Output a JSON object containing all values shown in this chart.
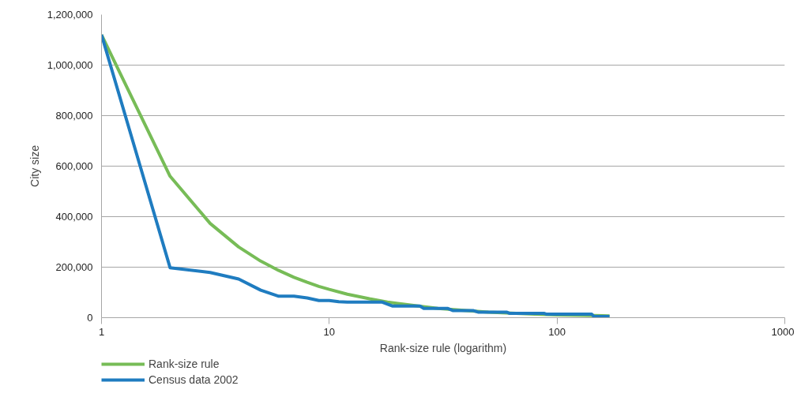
{
  "chart_data": {
    "type": "line",
    "xlabel": "Rank-size rule (logarithm)",
    "ylabel": "City size",
    "log": "x",
    "grid": "y",
    "legend": "bottom left",
    "line_style": "solid",
    "marker": "none",
    "xlim": [
      1,
      1000
    ],
    "xticks": [
      1,
      10,
      100,
      1000
    ],
    "ylim": [
      0,
      1200000
    ],
    "yticks": [
      {
        "value": 0,
        "label": "0"
      },
      {
        "value": 200000,
        "label": "200,000"
      },
      {
        "value": 400000,
        "label": "400,000"
      },
      {
        "value": 600000,
        "label": "600,000"
      },
      {
        "value": 800000,
        "label": "800,000"
      },
      {
        "value": 1000000,
        "label": "1,000,000"
      },
      {
        "value": 1200000,
        "label": "1,200,000"
      }
    ],
    "series": [
      {
        "name": "Rank-size rule",
        "color": "#77bc57",
        "x": [
          1,
          2,
          3,
          4,
          5,
          6,
          7,
          8,
          9,
          10,
          12,
          15,
          18,
          20,
          25,
          30,
          40,
          50,
          60,
          80,
          100,
          130,
          170
        ],
        "values": [
          1120000,
          560000,
          373000,
          280000,
          224000,
          187000,
          160000,
          140000,
          124000,
          112000,
          93000,
          75000,
          62000,
          56000,
          45000,
          37000,
          28000,
          22000,
          19000,
          14000,
          11000,
          9000,
          7000
        ]
      },
      {
        "name": "Census data 2002",
        "color": "#1f7cc0",
        "x": [
          1,
          2,
          3,
          4,
          5,
          6,
          7,
          8,
          9,
          10,
          11,
          12,
          17,
          19,
          25,
          26,
          33,
          35,
          43,
          45,
          60,
          62,
          88,
          90,
          142,
          145,
          170
        ],
        "values": [
          1120000,
          198000,
          179000,
          153000,
          109000,
          85000,
          85000,
          78000,
          68000,
          68000,
          63000,
          62000,
          62000,
          46000,
          46000,
          37000,
          37000,
          28000,
          28000,
          22000,
          22000,
          17000,
          17000,
          14000,
          14000,
          5000,
          5000
        ]
      }
    ]
  }
}
